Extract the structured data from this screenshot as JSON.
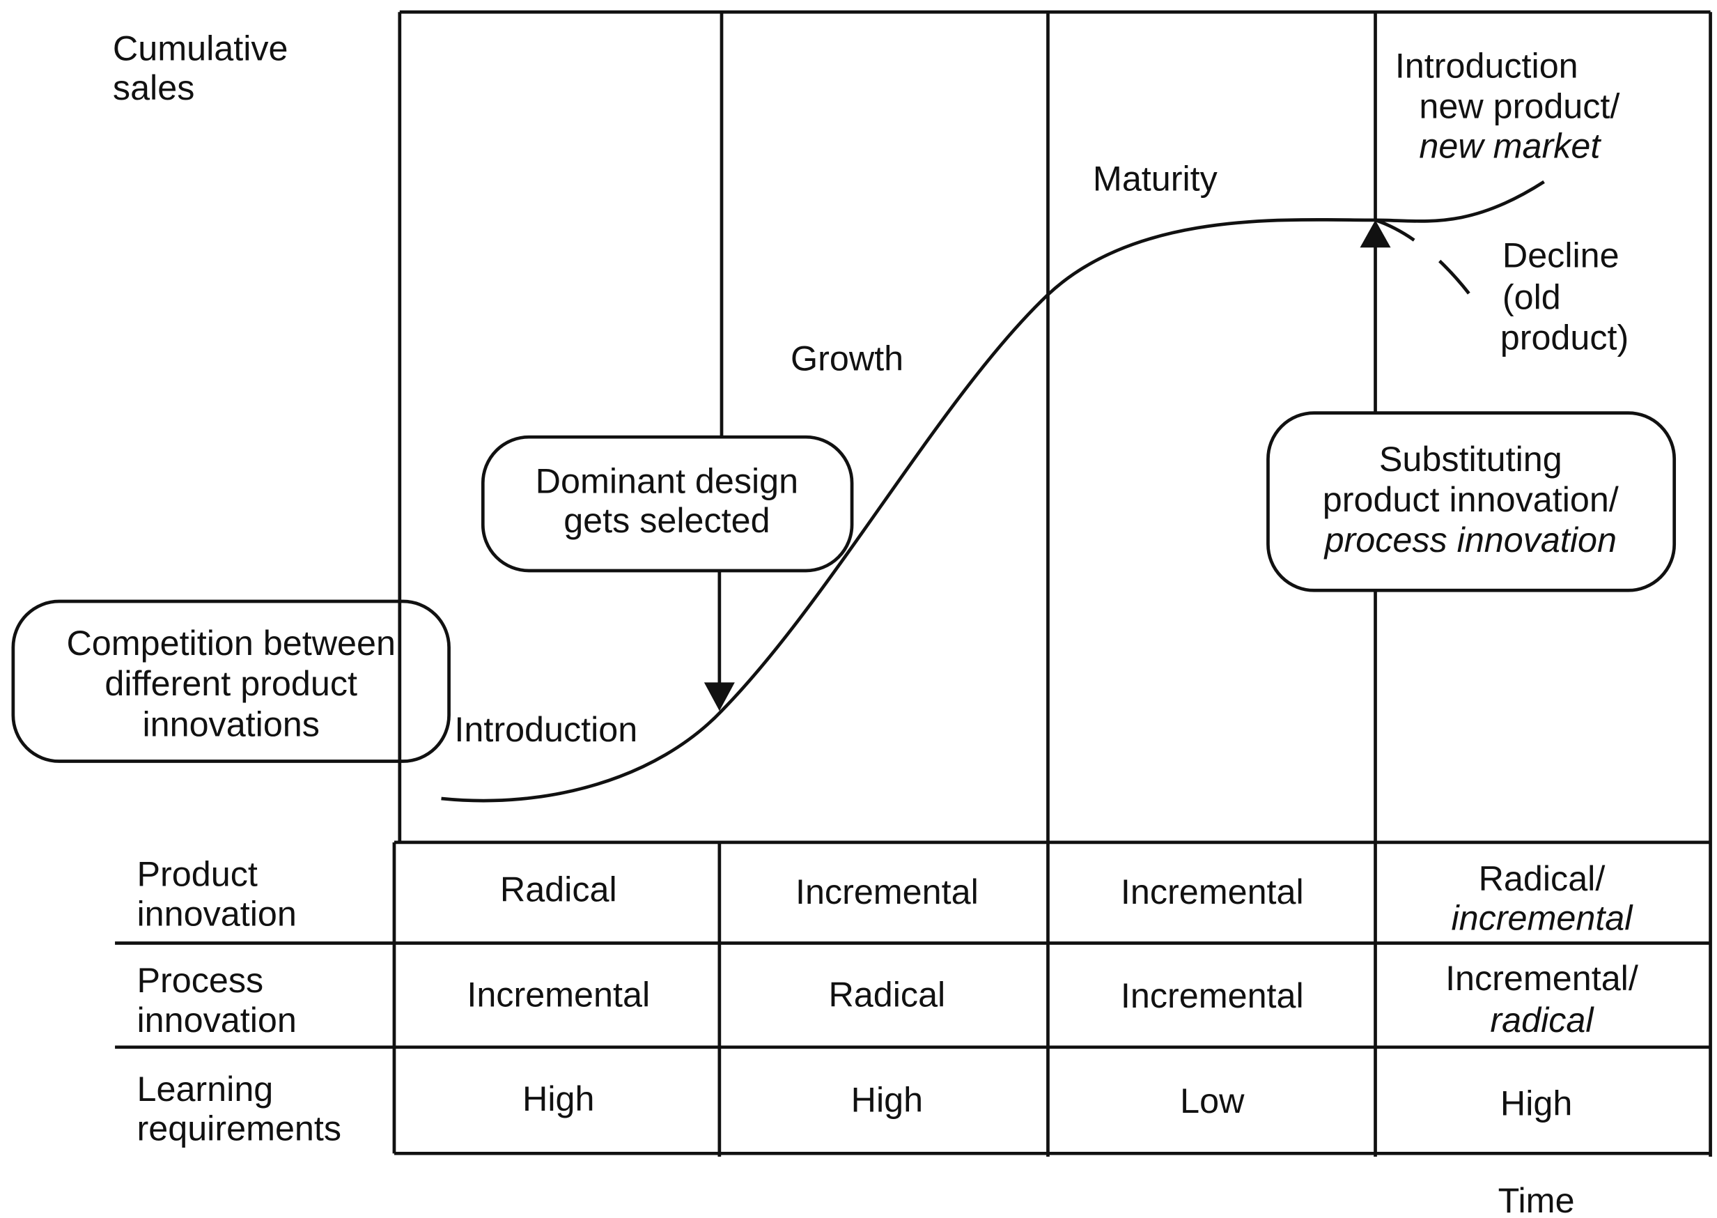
{
  "y_axis_label": [
    "Cumulative",
    "sales"
  ],
  "x_axis_label": "Time",
  "phases": [
    {
      "label": [
        "Introduction"
      ]
    },
    {
      "label": [
        "Growth"
      ]
    },
    {
      "label": [
        "Maturity"
      ]
    },
    {
      "label": [
        "Decline",
        "(old",
        "product)"
      ]
    }
  ],
  "new_product_label": [
    "Introduction",
    "new product/",
    "new market"
  ],
  "boxes": [
    {
      "lines": [
        "Competition between",
        "different product",
        "innovations"
      ]
    },
    {
      "lines": [
        "Dominant design",
        "gets selected"
      ]
    },
    {
      "lines": [
        "Substituting",
        "product innovation/",
        "process innovation"
      ]
    }
  ],
  "table": {
    "rows": [
      {
        "label": [
          "Product",
          "innovation"
        ],
        "cells": [
          [
            "Radical"
          ],
          [
            "Incremental"
          ],
          [
            "Incremental"
          ],
          [
            "Radical/",
            "incremental"
          ]
        ]
      },
      {
        "label": [
          "Process",
          "innovation"
        ],
        "cells": [
          [
            "Incremental"
          ],
          [
            "Radical"
          ],
          [
            "Incremental"
          ],
          [
            "Incremental/",
            "radical"
          ]
        ]
      },
      {
        "label": [
          "Learning",
          "requirements"
        ],
        "cells": [
          [
            "High"
          ],
          [
            "High"
          ],
          [
            "Low"
          ],
          [
            "High"
          ]
        ]
      }
    ]
  }
}
